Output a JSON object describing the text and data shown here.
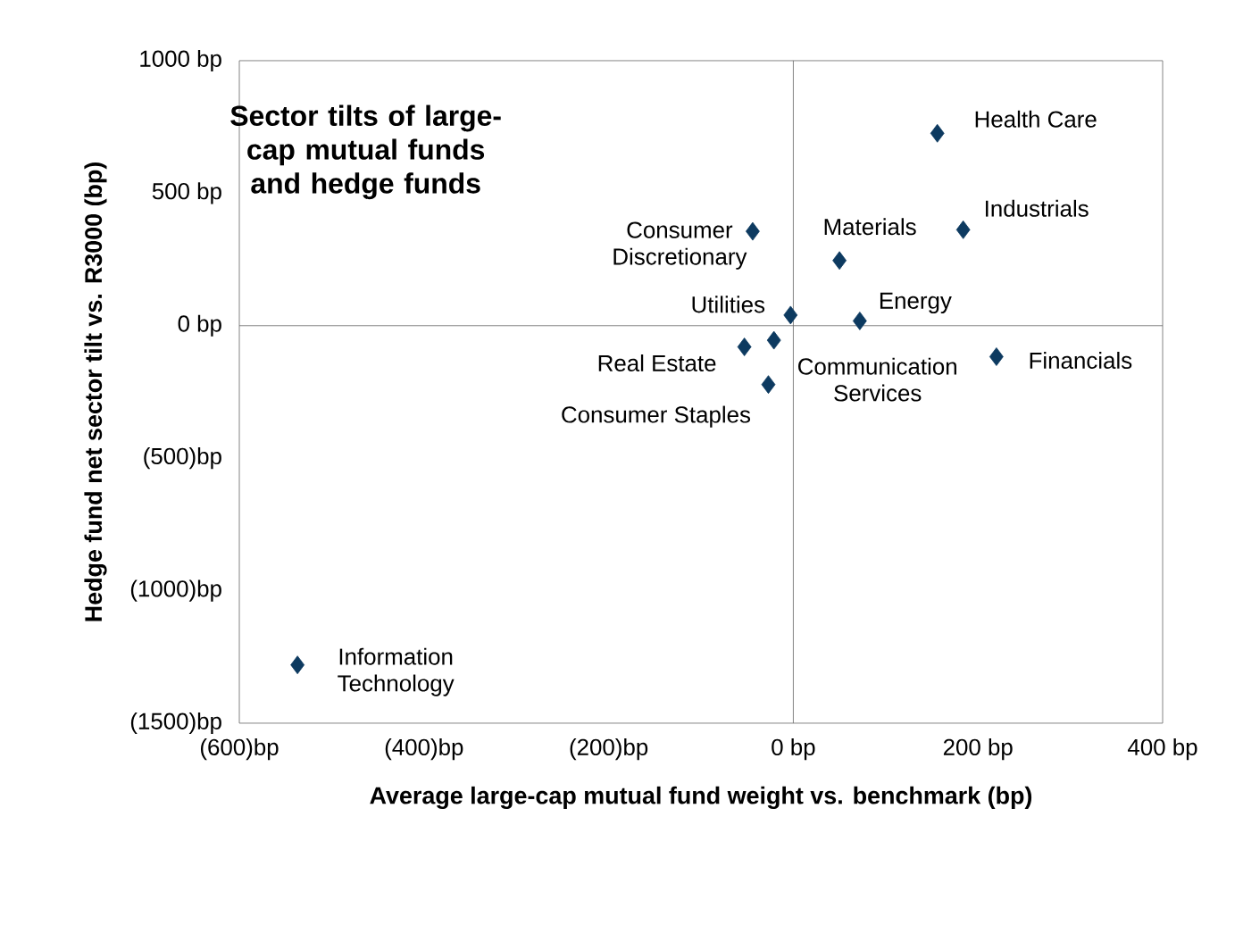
{
  "chart_data": {
    "type": "scatter",
    "title": "Sector tilts of large-cap mutual funds and hedge funds",
    "xlabel": "Average large-cap mutual fund weight vs. benchmark (bp)",
    "ylabel": "Hedge fund net sector tilt vs. R3000 (bp)",
    "x": [
      156,
      184,
      50,
      -44,
      -3,
      72,
      220,
      -53,
      -21,
      -27,
      -537
    ],
    "values": [
      726,
      362,
      246,
      356,
      40,
      18,
      -117,
      -80,
      -55,
      -222,
      -1280
    ],
    "color": "#0d3a60",
    "marker": "diamond",
    "xlim": [
      -600,
      400
    ],
    "ylim": [
      -1500,
      1000
    ],
    "xticks": [
      {
        "value": -600,
        "label": "(600)bp"
      },
      {
        "value": -400,
        "label": "(400)bp"
      },
      {
        "value": -200,
        "label": "(200)bp"
      },
      {
        "value": 0,
        "label": "0 bp"
      },
      {
        "value": 200,
        "label": "200 bp"
      },
      {
        "value": 400,
        "label": "400 bp"
      }
    ],
    "yticks": [
      {
        "value": -1500,
        "label": "(1500)bp"
      },
      {
        "value": -1000,
        "label": "(1000)bp"
      },
      {
        "value": -500,
        "label": "(500)bp"
      },
      {
        "value": 0,
        "label": "0 bp"
      },
      {
        "value": 500,
        "label": "500 bp"
      },
      {
        "value": 1000,
        "label": "1000 bp"
      }
    ],
    "annotations": [
      {
        "text": "Health Care",
        "x": 156,
        "y": 726
      },
      {
        "text": "Industrials",
        "x": 184,
        "y": 362
      },
      {
        "text": "Materials",
        "x": 50,
        "y": 246
      },
      {
        "text": "Consumer Discretionary",
        "x": -44,
        "y": 356
      },
      {
        "text": "Utilities",
        "x": -3,
        "y": 40
      },
      {
        "text": "Energy",
        "x": 72,
        "y": 18
      },
      {
        "text": "Financials",
        "x": 220,
        "y": -117
      },
      {
        "text": "Real Estate",
        "x": -53,
        "y": -80
      },
      {
        "text": "Communication Services",
        "x": -21,
        "y": -55
      },
      {
        "text": "Consumer Staples",
        "x": -27,
        "y": -222
      },
      {
        "text": "Information Technology",
        "x": -537,
        "y": -1280
      }
    ]
  }
}
